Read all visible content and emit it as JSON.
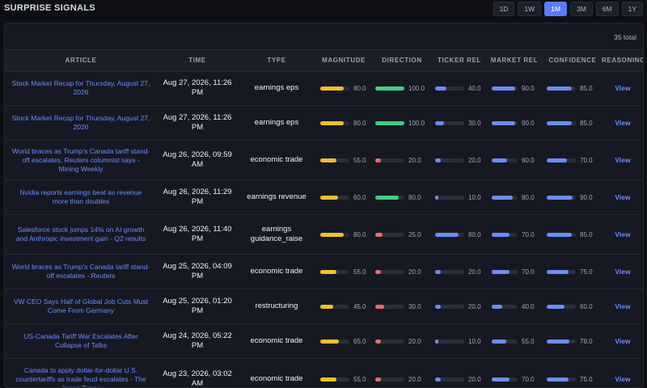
{
  "header": {
    "title": "SURPRISE SIGNALS",
    "ranges": [
      {
        "label": "1D",
        "active": false
      },
      {
        "label": "1W",
        "active": false
      },
      {
        "label": "1M",
        "active": true
      },
      {
        "label": "3M",
        "active": false
      },
      {
        "label": "6M",
        "active": false
      },
      {
        "label": "1Y",
        "active": false
      }
    ]
  },
  "table": {
    "total_label": "35 total",
    "columns": [
      "ARTICLE",
      "TIME",
      "TYPE",
      "MAGNITUDE",
      "DIRECTION",
      "TICKER REL",
      "MARKET REL",
      "CONFIDENCE",
      "REASONING"
    ],
    "colors": {
      "magnitude": "#f7be2a",
      "direction_positive": "#3ecf86",
      "direction_negative": "#f26a6a",
      "relevance": "#6b8cff"
    },
    "rows": [
      {
        "article": "Stock Market Recap for Thursday, August 27, 2026",
        "time": "Aug 27, 2026, 11:26 PM",
        "type": "earnings eps",
        "magnitude": 80.0,
        "direction": 100.0,
        "direction_sign": "positive",
        "ticker_rel": 40.0,
        "market_rel": 90.0,
        "confidence": 85.0,
        "reasoning": "View"
      },
      {
        "article": "Stock Market Recap for Thursday, August 27, 2026",
        "time": "Aug 27, 2026, 11:26 PM",
        "type": "earnings eps",
        "magnitude": 80.0,
        "direction": 100.0,
        "direction_sign": "positive",
        "ticker_rel": 30.0,
        "market_rel": 90.0,
        "confidence": 85.0,
        "reasoning": "View"
      },
      {
        "article": "World braces as Trump's Canada tariff stand-off escalates, Reuters columnist says - Mining Weekly",
        "time": "Aug 26, 2026, 09:59 AM",
        "type": "economic trade",
        "magnitude": 55.0,
        "direction": 20.0,
        "direction_sign": "negative",
        "ticker_rel": 20.0,
        "market_rel": 60.0,
        "confidence": 70.0,
        "reasoning": "View"
      },
      {
        "article": "Nvidia reports earnings beat as revenue more than doubles",
        "time": "Aug 26, 2026, 11:29 PM",
        "type": "earnings revenue",
        "magnitude": 60.0,
        "direction": 80.0,
        "direction_sign": "positive",
        "ticker_rel": 10.0,
        "market_rel": 80.0,
        "confidence": 90.0,
        "reasoning": "View"
      },
      {
        "article": "Salesforce stock jumps 14% on AI growth and Anthropic investment gain - Q2 results",
        "time": "Aug 26, 2026, 11:40 PM",
        "type": "earnings guidance_raise",
        "magnitude": 80.0,
        "direction": 25.0,
        "direction_sign": "negative",
        "ticker_rel": 80.0,
        "market_rel": 70.0,
        "confidence": 85.0,
        "reasoning": "View"
      },
      {
        "article": "World braces as Trump's Canada tariff stand-off escalates - Reuters",
        "time": "Aug 25, 2026, 04:09 PM",
        "type": "economic trade",
        "magnitude": 55.0,
        "direction": 20.0,
        "direction_sign": "negative",
        "ticker_rel": 20.0,
        "market_rel": 70.0,
        "confidence": 75.0,
        "reasoning": "View"
      },
      {
        "article": "VW CEO Says Half of Global Job Cuts Must Come From Germany",
        "time": "Aug 25, 2026, 01:20 PM",
        "type": "restructuring",
        "magnitude": 45.0,
        "direction": 30.0,
        "direction_sign": "negative",
        "ticker_rel": 20.0,
        "market_rel": 40.0,
        "confidence": 60.0,
        "reasoning": "View"
      },
      {
        "article": "US-Canada Tariff War Escalates After Collapse of Talks",
        "time": "Aug 24, 2026, 05:22 PM",
        "type": "economic trade",
        "magnitude": 65.0,
        "direction": 20.0,
        "direction_sign": "negative",
        "ticker_rel": 10.0,
        "market_rel": 55.0,
        "confidence": 78.0,
        "reasoning": "View"
      },
      {
        "article": "Canada to apply dollar-for-dollar U.S. counter­tariffs as trade feud escalates - The Japan Times",
        "time": "Aug 23, 2026, 03:02 AM",
        "type": "economic trade",
        "magnitude": 55.0,
        "direction": 20.0,
        "direction_sign": "negative",
        "ticker_rel": 20.0,
        "market_rel": 70.0,
        "confidence": 75.0,
        "reasoning": "View"
      }
    ]
  }
}
